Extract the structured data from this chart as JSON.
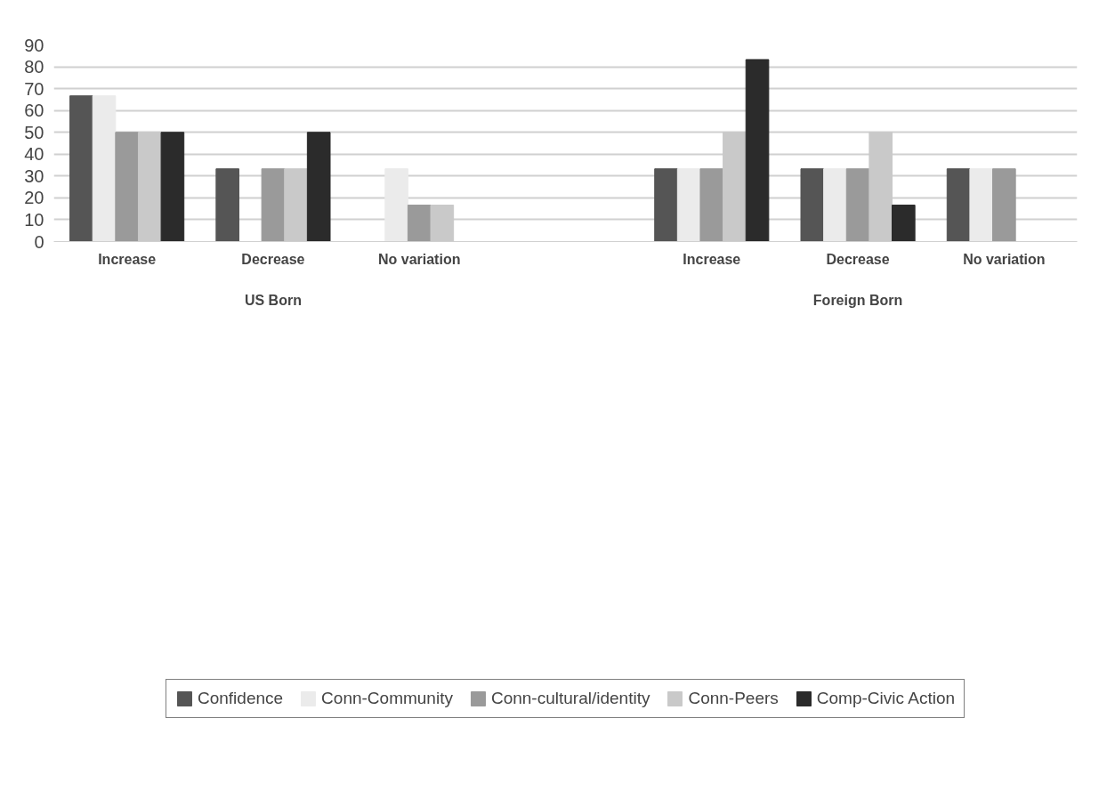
{
  "chart_data": {
    "type": "bar",
    "categories": [
      "Increase",
      "Decrease",
      "No variation",
      null,
      "Increase",
      "Decrease",
      "No variation"
    ],
    "annotations": [
      "US Born",
      "Foreign Born"
    ],
    "series": [
      {
        "name": "Confidence",
        "color": "#555555",
        "values": [
          66.7,
          33.3,
          0,
          null,
          33.3,
          33.3,
          33.3
        ]
      },
      {
        "name": "Conn-Community",
        "color": "#ebebeb",
        "values": [
          66.7,
          0,
          33.3,
          null,
          33.3,
          33.3,
          33.3
        ]
      },
      {
        "name": "Conn-cultural/identity",
        "color": "#9a9a9a",
        "values": [
          50,
          33.3,
          16.7,
          null,
          33.3,
          33.3,
          33.3
        ]
      },
      {
        "name": "Conn-Peers",
        "color": "#c9c9c9",
        "values": [
          50,
          33.3,
          16.7,
          null,
          50,
          50,
          0
        ]
      },
      {
        "name": "Comp-Civic Action",
        "color": "#2b2b2b",
        "values": [
          50,
          50,
          0,
          null,
          83.3,
          16.7,
          0
        ]
      }
    ],
    "ylim": [
      0,
      90
    ],
    "yticks": [
      0,
      10,
      20,
      30,
      40,
      50,
      60,
      70,
      80,
      90
    ],
    "grid": "y",
    "legend": "bottom"
  }
}
